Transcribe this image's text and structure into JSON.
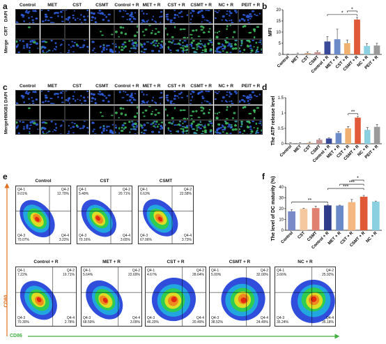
{
  "panels": {
    "a": "a",
    "b": "b",
    "c": "c",
    "d": "d",
    "e": "e",
    "f": "f"
  },
  "micro_columns": [
    "Control",
    "MET",
    "CST",
    "CSMT",
    "Control + R",
    "MET + R",
    "CST + R",
    "CSMT + R",
    "NC + R",
    "PEIT + R"
  ],
  "panel_a_rows": [
    "DAPI",
    "CRT",
    "Merge"
  ],
  "panel_c_rows": [
    "DAPI",
    "HMGB1",
    "Merge"
  ],
  "colors": {
    "dapi": "#0a1a66",
    "green": "#1e8a3a"
  },
  "chart_data": [
    {
      "id": "b",
      "type": "bar",
      "categories": [
        "Control",
        "MET",
        "CST",
        "CSMT",
        "Control + R",
        "MET + R",
        "CST + R",
        "CSMT + R",
        "NC + R",
        "PEIT + R"
      ],
      "values": [
        0.1,
        0.3,
        0.6,
        1.0,
        5.8,
        6.8,
        5.0,
        15.6,
        3.8,
        4.0
      ],
      "errors": [
        0.1,
        0.3,
        0.5,
        0.6,
        2.2,
        4.5,
        1.5,
        1.0,
        1.0,
        1.0
      ],
      "colors": [
        "#aaaaaa",
        "#b0b0b0",
        "#c8a080",
        "#c49090",
        "#3a4a9a",
        "#6a8ac8",
        "#f0b070",
        "#e05a3a",
        "#8ad0e0",
        "#9a9a9a"
      ],
      "ylabel": "MFI",
      "ylim": [
        0,
        20
      ],
      "yticks": [
        0,
        5,
        10,
        15,
        20
      ],
      "sig": [
        {
          "from": 4,
          "to": 7,
          "label": "*"
        },
        {
          "from": 6,
          "to": 7,
          "label": "*"
        }
      ]
    },
    {
      "id": "d",
      "type": "bar",
      "categories": [
        "Control",
        "MET",
        "CST",
        "CSMT",
        "Control + R",
        "MET + R",
        "CST + R",
        "CSMT + R",
        "NC + R",
        "PEIT + R"
      ],
      "values": [
        0.02,
        0.02,
        0.03,
        0.13,
        0.17,
        0.35,
        0.5,
        0.85,
        0.45,
        0.55
      ],
      "errors": [
        0.01,
        0.01,
        0.02,
        0.03,
        0.02,
        0.05,
        0.06,
        0.04,
        0.08,
        0.08
      ],
      "colors": [
        "#aaaaaa",
        "#b0b0b0",
        "#c8a080",
        "#c49090",
        "#3a4a9a",
        "#6a8ac8",
        "#f0b070",
        "#e05a3a",
        "#8ad0e0",
        "#9a9a9a"
      ],
      "ylabel": "The ATP  release level",
      "ylim": [
        0,
        1.5
      ],
      "yticks": [
        0.0,
        0.5,
        1.0,
        1.5
      ],
      "sig": [
        {
          "from": 6,
          "to": 7,
          "label": "**"
        }
      ]
    },
    {
      "id": "f",
      "type": "bar",
      "categories": [
        "Control",
        "CST",
        "CSMT",
        "Control + R",
        "MET + R",
        "CST + R",
        "CSMT + R",
        "NC + R"
      ],
      "values": [
        17.5,
        19.8,
        20.5,
        23.0,
        22.8,
        26.0,
        31.0,
        26.5
      ],
      "errors": [
        1.5,
        0.6,
        1.8,
        0.5,
        0.4,
        2.5,
        1.2,
        0.5
      ],
      "colors": [
        "#7a8ac8",
        "#f5c8a0",
        "#e08070",
        "#2e3a8a",
        "#6a8ac8",
        "#f5b880",
        "#e05a3a",
        "#8ad0e0"
      ],
      "ylabel": "The level of DC maturity (%)",
      "ylim": [
        0,
        40
      ],
      "yticks": [
        0,
        10,
        20,
        30,
        40
      ],
      "sig": [
        {
          "from": 0,
          "to": 3,
          "label": "**"
        },
        {
          "from": 3,
          "to": 6,
          "label": "***"
        },
        {
          "from": 4,
          "to": 6,
          "label": "***"
        },
        {
          "from": 5,
          "to": 6,
          "label": "*"
        }
      ]
    }
  ],
  "flow": {
    "x_axis": "CD86",
    "y_axis": "CD80",
    "plots": [
      {
        "title": "Control",
        "q1": "Q4-1",
        "q1v": "9.01%",
        "q2": "Q4-2",
        "q2v": "12.70%",
        "q3": "Q4-3",
        "q3v": "70.07%",
        "q4": "Q4-4",
        "q4v": "3.22%"
      },
      {
        "title": "CST",
        "q1": "Q4-1",
        "q1v": "5.48%",
        "q2": "Q4-2",
        "q2v": "20.71%",
        "q3": "Q4-3",
        "q3v": "70.16%",
        "q4": "Q4-4",
        "q4v": "3.65%"
      },
      {
        "title": "CSMT",
        "q1": "Q4-1",
        "q1v": "6.63%",
        "q2": "Q4-2",
        "q2v": "22.58%",
        "q3": "Q4-3",
        "q3v": "67.06%",
        "q4": "Q4-4",
        "q4v": "3.73%"
      },
      {
        "title": "Control + R",
        "q1": "Q4-1",
        "q1v": "7.22%",
        "q2": "Q4-2",
        "q2v": "19.71%",
        "q3": "Q4-3",
        "q3v": "70.30%",
        "q4": "Q4-4",
        "q4v": "2.78%"
      },
      {
        "title": "MET + R",
        "q1": "Q4-1",
        "q1v": "5.64%",
        "q2": "Q4-2",
        "q2v": "22.69%",
        "q3": "Q4-3",
        "q3v": "68.59%",
        "q4": "Q4-4",
        "q4v": "3.09%"
      },
      {
        "title": "CST + R",
        "q1": "Q4-1",
        "q1v": "4.67%",
        "q2": "Q4-2",
        "q2v": "28.64%",
        "q3": "Q4-3",
        "q3v": "46.20%",
        "q4": "Q4-4",
        "q4v": "20.49%"
      },
      {
        "title": "CSMT + R",
        "q1": "Q4-1",
        "q1v": "5.00%",
        "q2": "Q4-2",
        "q2v": "32.00%",
        "q3": "Q4-3",
        "q3v": "38.52%",
        "q4": "Q4-4",
        "q4v": "24.49%"
      },
      {
        "title": "NC + R",
        "q1": "Q4-1",
        "q1v": "3.66%",
        "q2": "Q4-2",
        "q2v": "25.92%",
        "q3": "Q4-3",
        "q3v": "35.24%",
        "q4": "Q4-4",
        "q4v": "35.18%"
      }
    ]
  }
}
